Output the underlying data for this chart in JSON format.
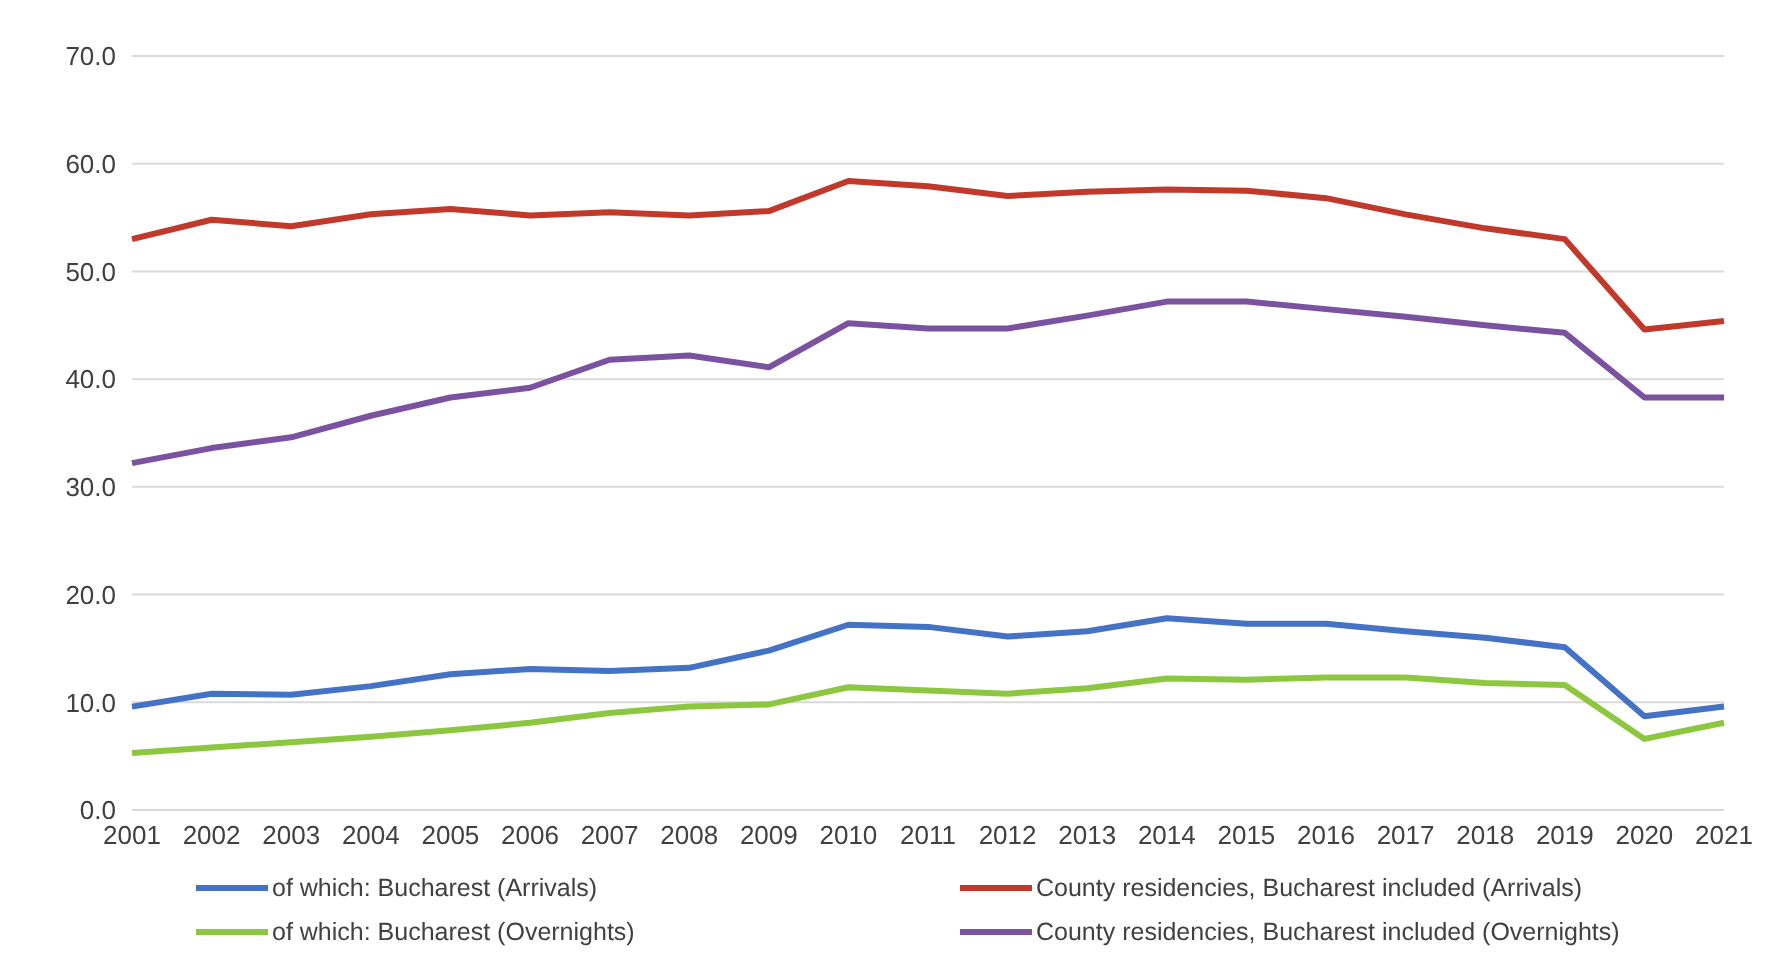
{
  "chart_data": {
    "type": "line",
    "categories": [
      "2001",
      "2002",
      "2003",
      "2004",
      "2005",
      "2006",
      "2007",
      "2008",
      "2009",
      "2010",
      "2011",
      "2012",
      "2013",
      "2014",
      "2015",
      "2016",
      "2017",
      "2018",
      "2019",
      "2020",
      "2021"
    ],
    "series": [
      {
        "name": "of which: Bucharest (Arrivals)",
        "color": "#4472c4",
        "values": [
          9.6,
          10.8,
          10.7,
          11.5,
          12.6,
          13.1,
          12.9,
          13.2,
          14.8,
          17.2,
          17.0,
          16.1,
          16.6,
          17.8,
          17.3,
          17.3,
          16.6,
          16.0,
          15.1,
          8.7,
          9.6
        ]
      },
      {
        "name": "County residencies, Bucharest included (Arrivals)",
        "color": "#c0392b",
        "values": [
          53.0,
          54.8,
          54.2,
          55.3,
          55.8,
          55.2,
          55.5,
          55.2,
          55.6,
          58.4,
          57.9,
          57.0,
          57.4,
          57.6,
          57.5,
          56.8,
          55.3,
          54.0,
          53.0,
          44.6,
          45.4
        ]
      },
      {
        "name": "of which: Bucharest (Overnights)",
        "color": "#8dc63f",
        "values": [
          5.3,
          5.8,
          6.3,
          6.8,
          7.4,
          8.1,
          9.0,
          9.6,
          9.8,
          11.4,
          11.1,
          10.8,
          11.3,
          12.2,
          12.1,
          12.3,
          12.3,
          11.8,
          11.6,
          6.6,
          8.1
        ]
      },
      {
        "name": "County residencies, Bucharest included (Overnights)",
        "color": "#7b52a0",
        "values": [
          32.2,
          33.6,
          34.6,
          36.6,
          38.3,
          39.2,
          41.8,
          42.2,
          41.1,
          45.2,
          44.7,
          44.7,
          45.9,
          47.2,
          47.2,
          46.5,
          45.8,
          45.0,
          44.3,
          38.3,
          38.3
        ]
      }
    ],
    "ylim": [
      0,
      70
    ],
    "yticks": [
      {
        "value": 0,
        "label": "0.0"
      },
      {
        "value": 10,
        "label": "10.0"
      },
      {
        "value": 20,
        "label": "20.0"
      },
      {
        "value": 30,
        "label": "30.0"
      },
      {
        "value": 40,
        "label": "40.0"
      },
      {
        "value": 50,
        "label": "50.0"
      },
      {
        "value": 60,
        "label": "60.0"
      },
      {
        "value": 70,
        "label": "70.0"
      }
    ],
    "grid": "y",
    "legend": "bottom",
    "marker": "none",
    "line_style": "solid"
  }
}
